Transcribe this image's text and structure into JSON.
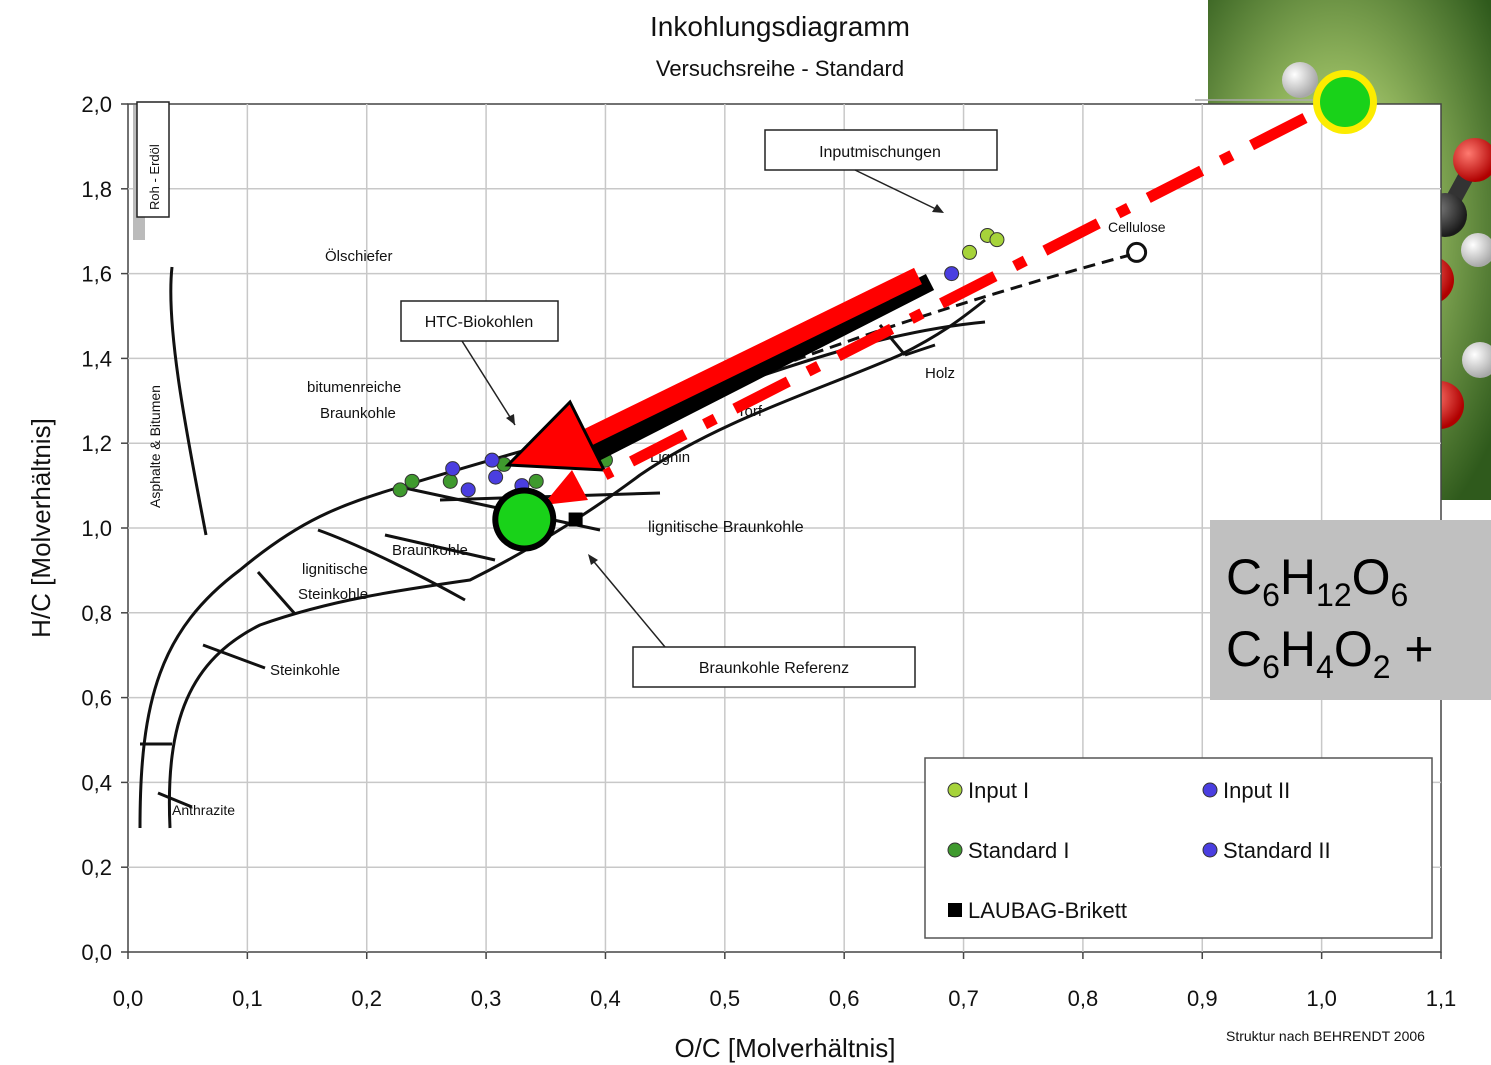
{
  "chart_data": {
    "type": "scatter",
    "title": "Inkohlungsdiagramm",
    "subtitle": "Versuchsreihe - Standard",
    "xlabel": "O/C [Molverhältnis]",
    "ylabel": "H/C [Molverhältnis]",
    "xlim": [
      0,
      1.1
    ],
    "ylim": [
      0,
      2.0
    ],
    "x_ticks": [
      "0,0",
      "0,1",
      "0,2",
      "0,3",
      "0,4",
      "0,5",
      "0,6",
      "0,7",
      "0,8",
      "0,9",
      "1,0",
      "1,1"
    ],
    "y_ticks": [
      "0,0",
      "0,2",
      "0,4",
      "0,6",
      "0,8",
      "1,0",
      "1,2",
      "1,4",
      "1,6",
      "1,8",
      "2,0"
    ],
    "grid": true,
    "legend_position": "bottom-right",
    "series": [
      {
        "name": "Input I",
        "color": "#a6d33a",
        "points": [
          [
            0.705,
            1.65
          ],
          [
            0.72,
            1.69
          ],
          [
            0.728,
            1.68
          ]
        ]
      },
      {
        "name": "Input II",
        "color": "#4a3ee0",
        "points": [
          [
            0.69,
            1.6
          ]
        ]
      },
      {
        "name": "Standard I",
        "color": "#3f9a2e",
        "points": [
          [
            0.228,
            1.09
          ],
          [
            0.238,
            1.11
          ],
          [
            0.27,
            1.11
          ],
          [
            0.315,
            1.15
          ],
          [
            0.342,
            1.11
          ],
          [
            0.4,
            1.16
          ]
        ]
      },
      {
        "name": "Standard II",
        "color": "#4a3ee0",
        "points": [
          [
            0.272,
            1.14
          ],
          [
            0.285,
            1.09
          ],
          [
            0.305,
            1.16
          ],
          [
            0.308,
            1.12
          ],
          [
            0.33,
            1.1
          ],
          [
            0.41,
            1.21
          ]
        ]
      },
      {
        "name": "LAUBAG-Brikett",
        "color": "#000000",
        "points": [
          [
            0.375,
            1.02
          ]
        ]
      }
    ],
    "cellulose_point": [
      0.845,
      1.65
    ],
    "highlight_point": [
      0.332,
      1.02
    ],
    "annotations": {
      "roh_erdoel": "Roh - Erdöl",
      "asphalte": "Asphalte & Bitumen",
      "oelschiefer": "Ölschiefer",
      "bitumen1": "bitumenreiche",
      "bitumen2": "Braunkohle",
      "htc": "HTC-Biokohlen",
      "inputmischungen": "Inputmischungen",
      "cellulose": "Cellulose",
      "holz": "Holz",
      "torf": "Torf",
      "lignin": "Lignin",
      "lign_braunkohle": "lignitische Braunkohle",
      "braunkohle": "Braunkohle",
      "lign_stein1": "lignitische",
      "lign_stein2": "Steinkohle",
      "steinkohle": "Steinkohle",
      "anthrazite": "Anthrazite",
      "braunkohle_referenz": "Braunkohle Referenz"
    },
    "formula": {
      "line1": [
        "C",
        "6",
        "H",
        "12",
        "O",
        "6"
      ],
      "line2": [
        "C",
        "6",
        "H",
        "4",
        "O",
        "2",
        " +"
      ]
    },
    "source": "Struktur nach BEHRENDT 2006"
  }
}
